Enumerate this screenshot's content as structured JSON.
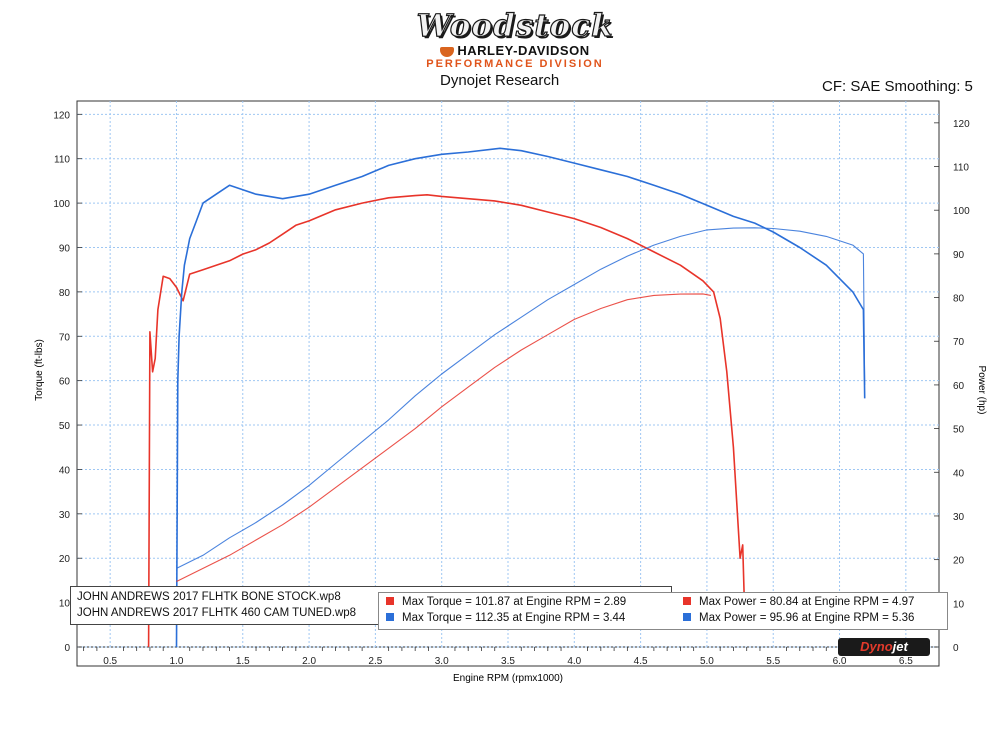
{
  "header": {
    "logo_main": "Woodstock",
    "logo_brand": "HARLEY-DAVIDSON",
    "logo_division": "PERFORMANCE DIVISION",
    "subtitle": "Dynojet Research",
    "cf_label": "CF: SAE Smoothing: 5"
  },
  "colors": {
    "stock": "#e8342a",
    "tuned": "#2b6fd8",
    "grid": "#9fc7f3",
    "plot_bg": "#ffffff"
  },
  "legend": {
    "runs": [
      "JOHN ANDREWS 2017 FLHTK BONE STOCK.wp8",
      "JOHN ANDREWS 2017 FLHTK 460 CAM TUNED.wp8"
    ],
    "stats": [
      {
        "run": "stock",
        "text": "Max Torque = 101.87 at Engine RPM = 2.89"
      },
      {
        "run": "stock",
        "text": "Max Power = 80.84 at Engine RPM = 4.97"
      },
      {
        "run": "tuned",
        "text": "Max Torque = 112.35 at Engine RPM = 3.44"
      },
      {
        "run": "tuned",
        "text": "Max Power = 95.96 at Engine RPM = 5.36"
      }
    ]
  },
  "brand_logo": {
    "part1": "Dyno",
    "part2": "jet"
  },
  "chart_data": {
    "type": "line",
    "xlabel": "Engine RPM (rpmx1000)",
    "ylabel": "Torque (ft-lbs)",
    "y2label": "Power (hp)",
    "xlim": [
      0.25,
      6.75
    ],
    "ylim": [
      0,
      123
    ],
    "y2lim": [
      0,
      125
    ],
    "xticks": [
      "0.5",
      "1.0",
      "1.5",
      "2.0",
      "2.5",
      "3.0",
      "3.5",
      "4.0",
      "4.5",
      "5.0",
      "5.5",
      "6.0",
      "6.5"
    ],
    "yticks": [
      "0",
      "10",
      "20",
      "30",
      "40",
      "50",
      "60",
      "70",
      "80",
      "90",
      "100",
      "110",
      "120"
    ],
    "y2ticks": [
      "0",
      "10",
      "20",
      "30",
      "40",
      "50",
      "60",
      "70",
      "80",
      "90",
      "100",
      "110",
      "120"
    ],
    "grid": true,
    "series": [
      {
        "name": "JOHN ANDREWS 2017 FLHTK BONE STOCK.wp8",
        "measure": "torque",
        "axis": "left",
        "color_key": "stock",
        "x": [
          0.79,
          0.8,
          0.82,
          0.84,
          0.86,
          0.9,
          0.95,
          1.0,
          1.05,
          1.1,
          1.2,
          1.3,
          1.4,
          1.5,
          1.6,
          1.7,
          1.8,
          1.9,
          2.0,
          2.2,
          2.4,
          2.6,
          2.8,
          2.89,
          3.0,
          3.2,
          3.4,
          3.6,
          3.8,
          4.0,
          4.2,
          4.4,
          4.6,
          4.8,
          4.97,
          5.05,
          5.1,
          5.15,
          5.2,
          5.25,
          5.27,
          5.28
        ],
        "y": [
          0,
          71,
          62,
          65,
          76,
          83.5,
          83,
          81,
          78,
          84,
          85,
          86,
          87,
          88.5,
          89.5,
          91,
          93,
          95,
          96,
          98.5,
          100,
          101.2,
          101.7,
          101.87,
          101.5,
          101,
          100.5,
          99.5,
          98,
          96.5,
          94.5,
          92,
          89,
          86,
          82.5,
          80,
          74,
          62,
          45,
          20,
          23,
          12
        ]
      },
      {
        "name": "JOHN ANDREWS 2017 FLHTK 460 CAM TUNED.wp8",
        "measure": "torque",
        "axis": "left",
        "color_key": "tuned",
        "x": [
          1.0,
          1.01,
          1.02,
          1.04,
          1.06,
          1.08,
          1.1,
          1.15,
          1.2,
          1.3,
          1.4,
          1.5,
          1.6,
          1.8,
          2.0,
          2.2,
          2.4,
          2.6,
          2.8,
          3.0,
          3.2,
          3.44,
          3.6,
          3.8,
          4.0,
          4.2,
          4.4,
          4.6,
          4.8,
          5.0,
          5.2,
          5.36,
          5.5,
          5.7,
          5.9,
          6.1,
          6.18,
          6.19
        ],
        "y": [
          0,
          60,
          70,
          80,
          86,
          89,
          92,
          96,
          100,
          102,
          104,
          103,
          102,
          101,
          102,
          104,
          106,
          108.5,
          110,
          111,
          111.5,
          112.35,
          111.8,
          110.5,
          109,
          107.5,
          106,
          104,
          102,
          99.5,
          97,
          95.5,
          93.5,
          90,
          86,
          80,
          76,
          56
        ]
      },
      {
        "name": "JOHN ANDREWS 2017 FLHTK BONE STOCK.wp8",
        "measure": "power",
        "axis": "right",
        "color_key": "stock",
        "x": [
          1.0,
          1.2,
          1.4,
          1.6,
          1.8,
          2.0,
          2.2,
          2.4,
          2.6,
          2.8,
          3.0,
          3.2,
          3.4,
          3.6,
          3.8,
          4.0,
          4.2,
          4.4,
          4.6,
          4.8,
          4.97,
          5.03
        ],
        "y": [
          15,
          18,
          21,
          24.5,
          28,
          32,
          36.5,
          41,
          45.5,
          50,
          55,
          59.5,
          64,
          68,
          71.5,
          75,
          77.5,
          79.5,
          80.5,
          80.8,
          80.84,
          80.5
        ]
      },
      {
        "name": "JOHN ANDREWS 2017 FLHTK 460 CAM TUNED.wp8",
        "measure": "power",
        "axis": "right",
        "color_key": "tuned",
        "x": [
          1.0,
          1.2,
          1.4,
          1.6,
          1.8,
          2.0,
          2.2,
          2.4,
          2.6,
          2.8,
          3.0,
          3.2,
          3.4,
          3.6,
          3.8,
          4.0,
          4.2,
          4.4,
          4.6,
          4.8,
          5.0,
          5.2,
          5.36,
          5.5,
          5.7,
          5.9,
          6.1,
          6.18,
          6.19
        ],
        "y": [
          18,
          21,
          25,
          28.5,
          32.5,
          37,
          42,
          47,
          52,
          57.5,
          62.5,
          67,
          71.5,
          75.5,
          79.5,
          83,
          86.5,
          89.5,
          92,
          94,
          95.5,
          95.9,
          95.96,
          95.8,
          95.2,
          94,
          92,
          90,
          60
        ]
      }
    ]
  }
}
